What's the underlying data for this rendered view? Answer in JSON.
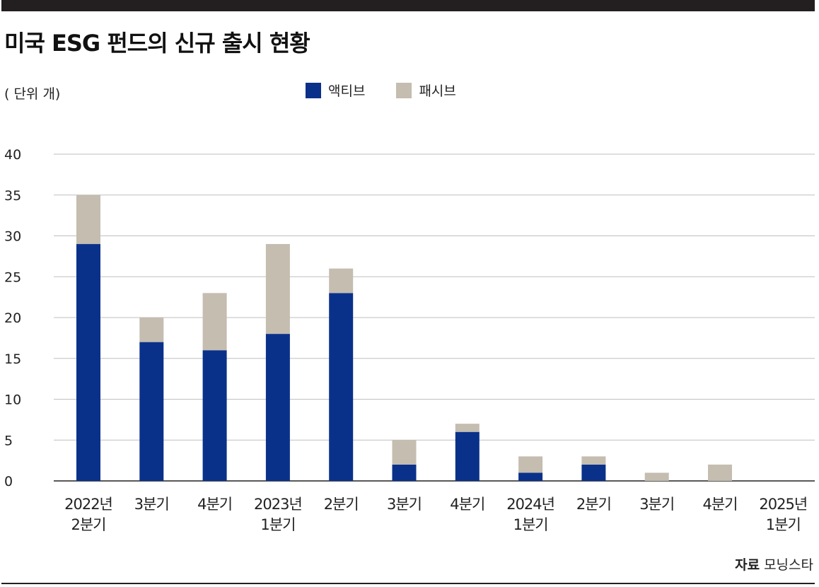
{
  "title": "미국 ESG 펀드의 신규 출시 현황",
  "unit_label": "( 단위 개)",
  "source": {
    "label": "자료",
    "value": "모닝스타"
  },
  "colors": {
    "active": "#0a318a",
    "passive": "#c4bdb0",
    "grid": "#bfbfbf",
    "axis": "#222222"
  },
  "chart_data": {
    "type": "bar",
    "stacked": true,
    "categories": [
      [
        "2022년",
        "2분기"
      ],
      [
        "3분기"
      ],
      [
        "4분기"
      ],
      [
        "2023년",
        "1분기"
      ],
      [
        "2분기"
      ],
      [
        "3분기"
      ],
      [
        "4분기"
      ],
      [
        "2024년",
        "1분기"
      ],
      [
        "2분기"
      ],
      [
        "3분기"
      ],
      [
        "4분기"
      ],
      [
        "2025년",
        "1분기"
      ]
    ],
    "series": [
      {
        "name": "액티브",
        "values": [
          29,
          17,
          16,
          18,
          23,
          2,
          6,
          1,
          2,
          0,
          0,
          0
        ]
      },
      {
        "name": "패시브",
        "values": [
          6,
          3,
          7,
          11,
          3,
          3,
          1,
          2,
          1,
          1,
          2,
          0
        ]
      }
    ],
    "ylim": [
      0,
      40
    ],
    "yticks": [
      0,
      5,
      10,
      15,
      20,
      25,
      30,
      35,
      40
    ],
    "grid": true,
    "legend_position": "top-center",
    "xlabel": "",
    "ylabel": ""
  }
}
